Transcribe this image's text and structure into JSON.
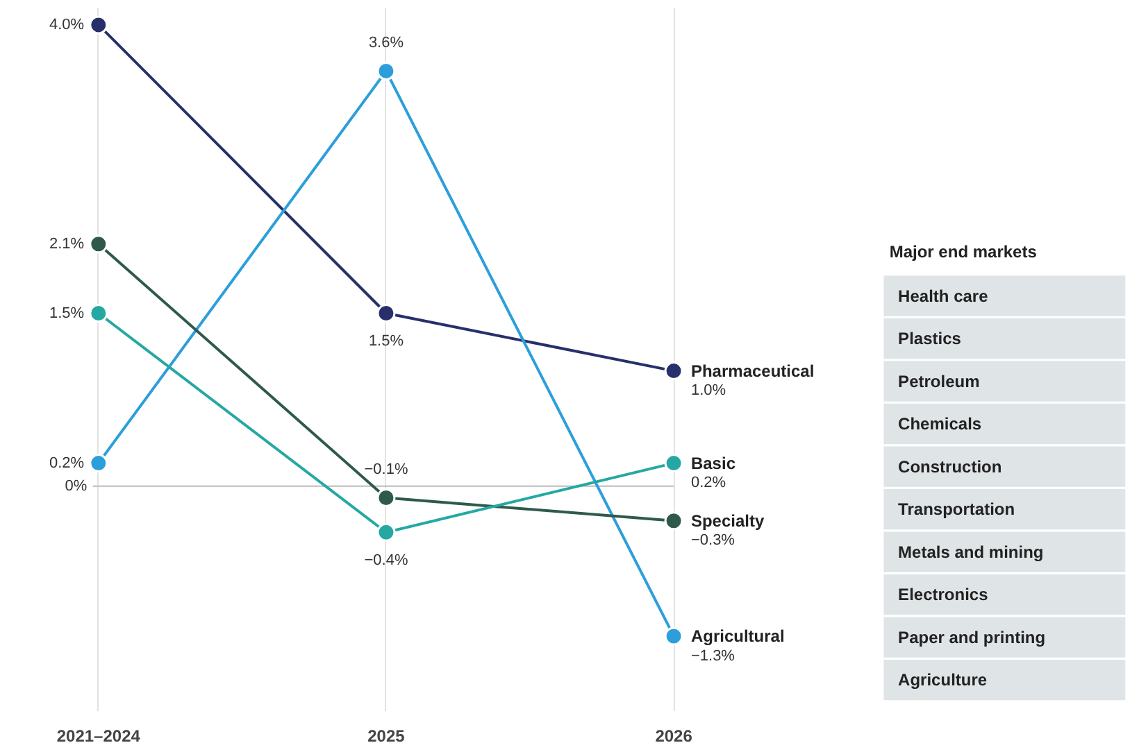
{
  "chart_data": {
    "type": "line",
    "categories": [
      "2021–2024",
      "2025",
      "2026"
    ],
    "series": [
      {
        "name": "Pharmaceutical",
        "color": "#27306b",
        "values": [
          4.0,
          1.5,
          1.0
        ],
        "value_labels": [
          "4.0%",
          "1.5%",
          "1.0%"
        ]
      },
      {
        "name": "Agricultural",
        "color": "#2c9fdb",
        "values": [
          0.2,
          3.6,
          -1.3
        ],
        "value_labels": [
          "0.2%",
          "3.6%",
          "−1.3%"
        ]
      },
      {
        "name": "Specialty",
        "color": "#2f5a4b",
        "values": [
          2.1,
          -0.1,
          -0.3
        ],
        "value_labels": [
          "2.1%",
          "−0.1%",
          "−0.3%"
        ]
      },
      {
        "name": "Basic",
        "color": "#25a8a3",
        "values": [
          1.5,
          -0.4,
          0.2
        ],
        "value_labels": [
          "1.5%",
          "−0.4%",
          "0.2%"
        ]
      }
    ],
    "ylim": [
      -1.95,
      4.15
    ],
    "grid": "x",
    "marker": "circle",
    "ref_lines": [
      {
        "axis": "y",
        "value": 0,
        "label": "0%",
        "color": "#bbbbbb"
      }
    ],
    "legend_title": "Major end markets",
    "annotations": [
      "Health care",
      "Plastics",
      "Petroleum",
      "Chemicals",
      "Construction",
      "Transportation",
      "Metals and mining",
      "Electronics",
      "Paper and printing",
      "Agriculture"
    ]
  }
}
